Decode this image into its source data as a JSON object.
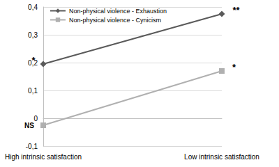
{
  "chart_data": {
    "type": "line",
    "categories": [
      "High intrinsic satisfaction",
      "Low intrinsic satisfaction"
    ],
    "series": [
      {
        "name": "Non-physical violence - Exhaustion",
        "color": "#5a5a5a",
        "marker": "diamond",
        "values": [
          0.195,
          0.375
        ]
      },
      {
        "name": "Non-physical violence - Cynicism",
        "color": "#b0b0b0",
        "marker": "square",
        "values": [
          -0.025,
          0.17
        ]
      }
    ],
    "annotations": [
      {
        "text": "*",
        "series": "Non-physical violence - Exhaustion",
        "category": "High intrinsic satisfaction"
      },
      {
        "text": "**",
        "series": "Non-physical violence - Exhaustion",
        "category": "Low intrinsic satisfaction"
      },
      {
        "text": "NS",
        "series": "Non-physical violence - Cynicism",
        "category": "High intrinsic satisfaction"
      },
      {
        "text": "*",
        "series": "Non-physical violence - Cynicism",
        "category": "Low intrinsic satisfaction"
      }
    ],
    "ylim": [
      -0.1,
      0.4
    ],
    "yticks": [
      {
        "value": -0.1,
        "label": "-0,1"
      },
      0,
      {
        "value": 0.1,
        "label": "0,1"
      },
      {
        "value": 0.2,
        "label": "0,2"
      },
      {
        "value": 0.3,
        "label": "0,3"
      },
      {
        "value": 0.4,
        "label": "0,4"
      }
    ],
    "grid": true,
    "legend": "top-left"
  }
}
